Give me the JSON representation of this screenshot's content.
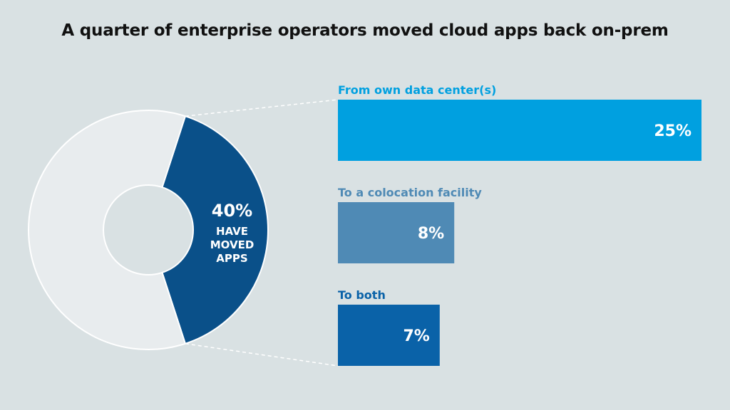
{
  "title": "A quarter of enterprise operators moved cloud apps back on-prem",
  "chart_data": [
    {
      "type": "pie",
      "title": "",
      "slices": [
        {
          "value": 40,
          "label": "40%",
          "caption": [
            "HAVE",
            "MOVED",
            "APPS"
          ],
          "color": "#0a5089"
        },
        {
          "value": 60,
          "label": "",
          "color": "#e8ecee"
        }
      ]
    },
    {
      "type": "bar",
      "orientation": "horizontal",
      "title": "",
      "categories": [
        "From own data center(s)",
        "To a colocation facility",
        "To both"
      ],
      "values": [
        25,
        8,
        7
      ],
      "value_labels": [
        "25%",
        "8%",
        "7%"
      ],
      "colors": [
        "#00a0e0",
        "#4f8ab5",
        "#0a62a8"
      ],
      "xlim": [
        0,
        25
      ]
    }
  ]
}
